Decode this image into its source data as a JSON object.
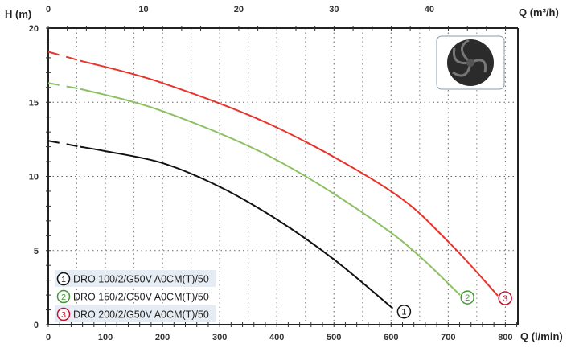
{
  "chart_data": {
    "type": "line",
    "xlabel": "Q (l/min)",
    "x2label": "Q (m³/h)",
    "ylabel": "H (m)",
    "xlim": [
      0,
      822
    ],
    "ylim": [
      0,
      20
    ],
    "x2lim": [
      0,
      49.3
    ],
    "xticks": [
      "0",
      "100",
      "200",
      "300",
      "400",
      "500",
      "600",
      "700",
      "800"
    ],
    "x2ticks": [
      "0",
      "10",
      "20",
      "30",
      "40"
    ],
    "yticks": [
      "0",
      "5",
      "10",
      "15",
      "20"
    ],
    "grid": true,
    "legend_position": "bottom-left",
    "series": [
      {
        "name": "DRO 100/2/G50V A0CM(T)/50",
        "marker": "1",
        "color": "#111111",
        "dashed_until": 56,
        "x": [
          0,
          56,
          100,
          200,
          300,
          400,
          500,
          603
        ],
        "y": [
          12.4,
          12.0,
          11.7,
          10.9,
          9.3,
          7.1,
          4.4,
          1.1
        ]
      },
      {
        "name": "DRO 150/2/G50V A0CM(T)/50",
        "marker": "2",
        "color": "#8cc063",
        "dashed_until": 56,
        "x": [
          0,
          56,
          200,
          400,
          600,
          721
        ],
        "y": [
          16.3,
          15.9,
          14.4,
          11.1,
          6.2,
          2.0
        ]
      },
      {
        "name": "DRO 200/2/G50V A0CM(T)/50",
        "marker": "3",
        "color": "#e8322a",
        "dashed_until": 56,
        "x": [
          0,
          56,
          200,
          400,
          600,
          700,
          787
        ],
        "y": [
          18.4,
          17.8,
          16.3,
          13.3,
          9.0,
          5.6,
          1.95
        ]
      }
    ],
    "marker_colors": [
      "#111111",
      "#3f9a2f",
      "#c8102e"
    ]
  }
}
